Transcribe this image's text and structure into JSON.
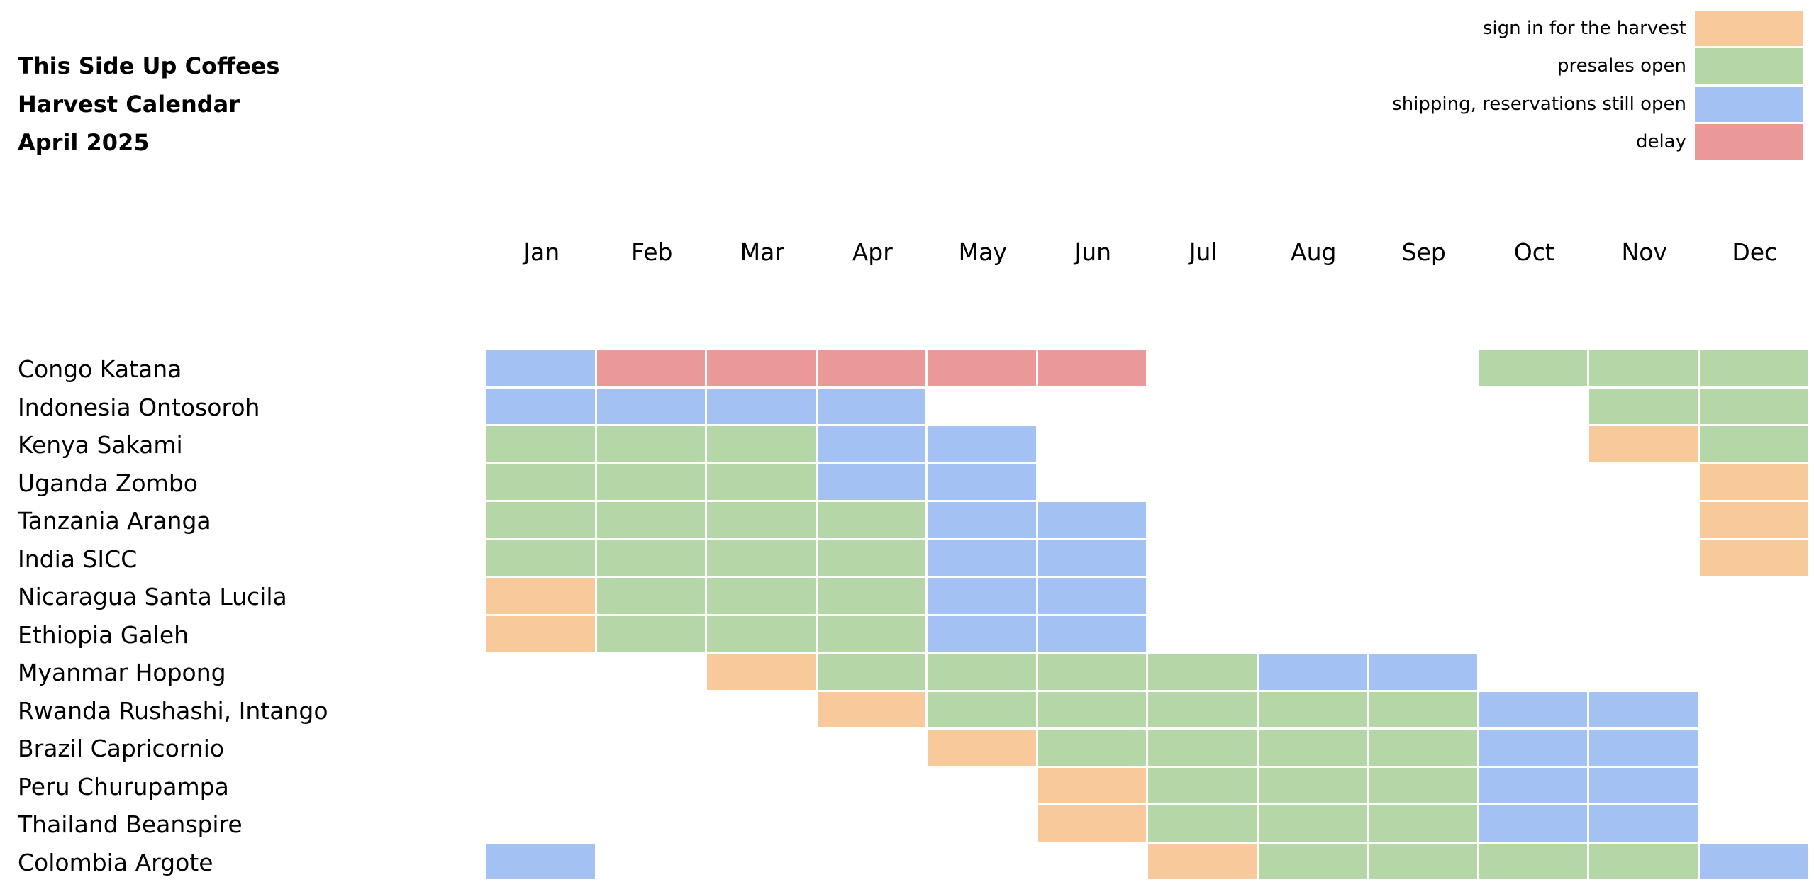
{
  "title": {
    "line1": "This Side Up Coffees",
    "line2": "Harvest Calendar",
    "line3": "April 2025"
  },
  "legend": [
    {
      "key": "sign",
      "label": "sign in for the harvest",
      "color": "#F8C99A"
    },
    {
      "key": "presale",
      "label": "presales open",
      "color": "#B5D7A8"
    },
    {
      "key": "shipping",
      "label": "shipping, reservations still open",
      "color": "#A4C1F4"
    },
    {
      "key": "delay",
      "label": "delay",
      "color": "#EB9898"
    }
  ],
  "chart_data": {
    "type": "heatmap",
    "months": [
      "Jan",
      "Feb",
      "Mar",
      "Apr",
      "May",
      "Jun",
      "Jul",
      "Aug",
      "Sep",
      "Oct",
      "Nov",
      "Dec"
    ],
    "rows": [
      {
        "name": "Congo Katana",
        "cells": [
          "shipping",
          "delay",
          "delay",
          "delay",
          "delay",
          "delay",
          "",
          "",
          "",
          "presale",
          "presale",
          "presale"
        ]
      },
      {
        "name": "Indonesia Ontosoroh",
        "cells": [
          "shipping",
          "shipping",
          "shipping",
          "shipping",
          "",
          "",
          "",
          "",
          "",
          "",
          "presale",
          "presale"
        ]
      },
      {
        "name": "Kenya Sakami",
        "cells": [
          "presale",
          "presale",
          "presale",
          "shipping",
          "shipping",
          "",
          "",
          "",
          "",
          "",
          "sign",
          "presale"
        ]
      },
      {
        "name": "Uganda Zombo",
        "cells": [
          "presale",
          "presale",
          "presale",
          "shipping",
          "shipping",
          "",
          "",
          "",
          "",
          "",
          "",
          "sign"
        ]
      },
      {
        "name": "Tanzania Aranga",
        "cells": [
          "presale",
          "presale",
          "presale",
          "presale",
          "shipping",
          "shipping",
          "",
          "",
          "",
          "",
          "",
          "sign"
        ]
      },
      {
        "name": "India SICC",
        "cells": [
          "presale",
          "presale",
          "presale",
          "presale",
          "shipping",
          "shipping",
          "",
          "",
          "",
          "",
          "",
          "sign"
        ]
      },
      {
        "name": "Nicaragua Santa Lucila",
        "cells": [
          "sign",
          "presale",
          "presale",
          "presale",
          "shipping",
          "shipping",
          "",
          "",
          "",
          "",
          "",
          ""
        ]
      },
      {
        "name": "Ethiopia Galeh",
        "cells": [
          "sign",
          "presale",
          "presale",
          "presale",
          "shipping",
          "shipping",
          "",
          "",
          "",
          "",
          "",
          ""
        ]
      },
      {
        "name": "Myanmar Hopong",
        "cells": [
          "",
          "",
          "sign",
          "presale",
          "presale",
          "presale",
          "presale",
          "shipping",
          "shipping",
          "",
          "",
          ""
        ]
      },
      {
        "name": "Rwanda Rushashi, Intango",
        "cells": [
          "",
          "",
          "",
          "sign",
          "presale",
          "presale",
          "presale",
          "presale",
          "presale",
          "shipping",
          "shipping",
          ""
        ]
      },
      {
        "name": "Brazil Capricornio",
        "cells": [
          "",
          "",
          "",
          "",
          "sign",
          "presale",
          "presale",
          "presale",
          "presale",
          "shipping",
          "shipping",
          ""
        ]
      },
      {
        "name": "Peru Churupampa",
        "cells": [
          "",
          "",
          "",
          "",
          "",
          "sign",
          "presale",
          "presale",
          "presale",
          "shipping",
          "shipping",
          ""
        ]
      },
      {
        "name": "Thailand Beanspire",
        "cells": [
          "",
          "",
          "",
          "",
          "",
          "sign",
          "presale",
          "presale",
          "presale",
          "shipping",
          "shipping",
          ""
        ]
      },
      {
        "name": "Colombia Argote",
        "cells": [
          "shipping",
          "",
          "",
          "",
          "",
          "",
          "sign",
          "presale",
          "presale",
          "presale",
          "presale",
          "shipping"
        ]
      }
    ]
  }
}
